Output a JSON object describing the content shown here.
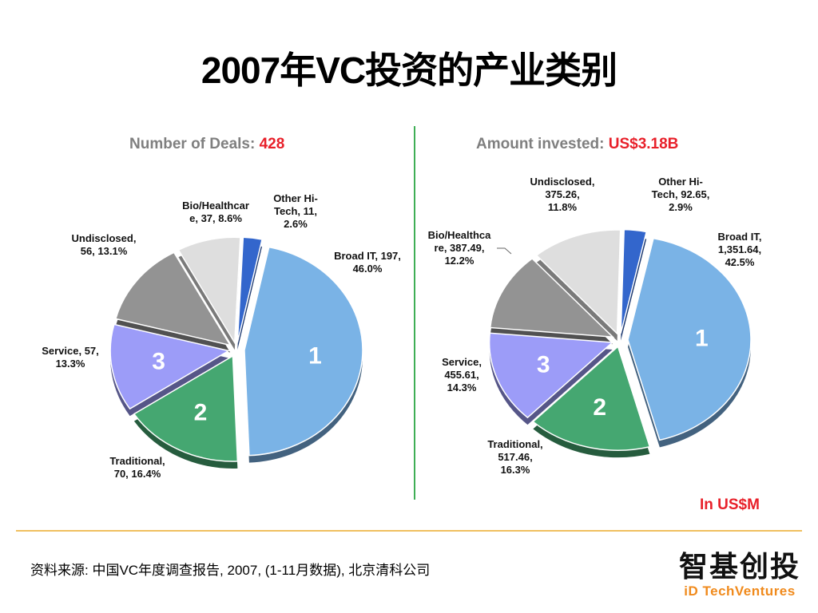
{
  "title": "2007年VC投资的产业类别",
  "chart_data": [
    {
      "type": "pie",
      "title_prefix": "Number of Deals: ",
      "title_value": "428",
      "slices": [
        {
          "name": "Broad IT",
          "value": 197,
          "percent": 46.0,
          "rank": "1",
          "color": "#7ab3e6",
          "label_lines": [
            "Broad IT, 197,",
            "46.0%"
          ]
        },
        {
          "name": "Traditional",
          "value": 70,
          "percent": 16.4,
          "rank": "2",
          "color": "#45a771",
          "label_lines": [
            "Traditional,",
            "70, 16.4%"
          ]
        },
        {
          "name": "Service",
          "value": 57,
          "percent": 13.3,
          "rank": "3",
          "color": "#9c9cf8",
          "label_lines": [
            "Service, 57,",
            "13.3%"
          ]
        },
        {
          "name": "Undisclosed",
          "value": 56,
          "percent": 13.1,
          "rank": "",
          "color": "#939393",
          "label_lines": [
            "Undisclosed,",
            "56, 13.1%"
          ]
        },
        {
          "name": "Bio/Healthcare",
          "value": 37,
          "percent": 8.6,
          "rank": "",
          "color": "#dedede",
          "label_lines": [
            "Bio/Healthcar",
            "e, 37, 8.6%"
          ]
        },
        {
          "name": "Other Hi-Tech",
          "value": 11,
          "percent": 2.6,
          "rank": "",
          "color": "#3366cc",
          "label_lines": [
            "Other Hi-",
            "Tech, 11,",
            "2.6%"
          ]
        }
      ]
    },
    {
      "type": "pie",
      "title_prefix": "Amount invested: ",
      "title_value": "US$3.18B",
      "unit_note": "In US$M",
      "slices": [
        {
          "name": "Broad IT",
          "value": 1351.64,
          "percent": 42.5,
          "rank": "1",
          "color": "#7ab3e6",
          "label_lines": [
            "Broad IT,",
            "1,351.64,",
            "42.5%"
          ]
        },
        {
          "name": "Traditional",
          "value": 517.46,
          "percent": 16.3,
          "rank": "2",
          "color": "#45a771",
          "label_lines": [
            "Traditional,",
            "517.46,",
            "16.3%"
          ]
        },
        {
          "name": "Service",
          "value": 455.61,
          "percent": 14.3,
          "rank": "3",
          "color": "#9c9cf8",
          "label_lines": [
            "Service,",
            "455.61,",
            "14.3%"
          ]
        },
        {
          "name": "Bio/Healthcare",
          "value": 387.49,
          "percent": 12.2,
          "rank": "",
          "color": "#939393",
          "label_lines": [
            "Bio/Healthca",
            "re, 387.49,",
            "12.2%"
          ]
        },
        {
          "name": "Undisclosed",
          "value": 375.26,
          "percent": 11.8,
          "rank": "",
          "color": "#dedede",
          "label_lines": [
            "Undisclosed,",
            "375.26,",
            "11.8%"
          ]
        },
        {
          "name": "Other Hi-Tech",
          "value": 92.65,
          "percent": 2.9,
          "rank": "",
          "color": "#3366cc",
          "label_lines": [
            "Other Hi-",
            "Tech, 92.65,",
            "2.9%"
          ]
        }
      ]
    }
  ],
  "source_note": "资料来源: 中国VC年度调查报告, 2007, (1-11月数据), 北京清科公司",
  "logo": {
    "cn": "智基创投",
    "en": "iD TechVentures"
  }
}
